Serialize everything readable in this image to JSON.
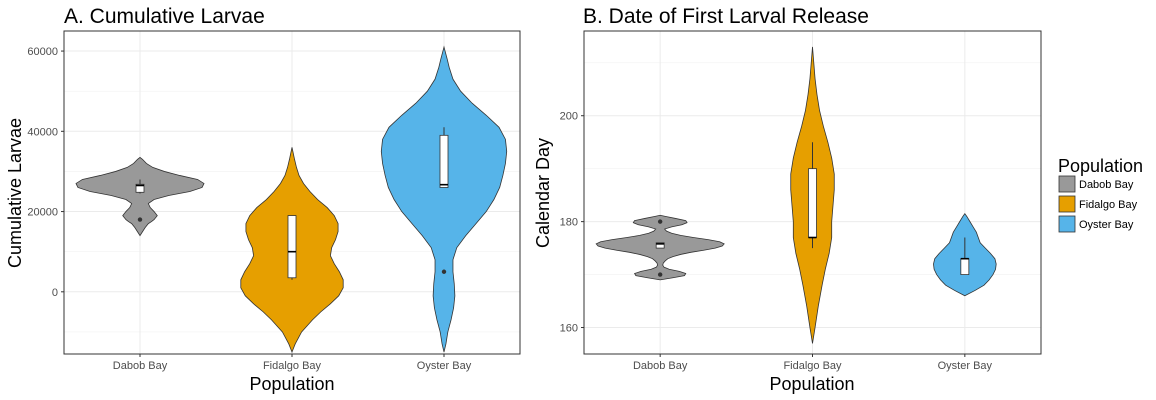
{
  "chart_data": [
    {
      "type": "violin",
      "title": "A. Cumulative Larvae",
      "xlabel": "Population",
      "ylabel": "Cumulative Larvae",
      "categories": [
        "Dabob Bay",
        "Fidalgo Bay",
        "Oyster Bay"
      ],
      "yticks": [
        0,
        20000,
        40000,
        60000
      ],
      "ytick_labels": [
        "0",
        "20000",
        "40000",
        "60000"
      ],
      "ylim": [
        -15500,
        65000
      ],
      "grid": true,
      "series": [
        {
          "category": "Dabob Bay",
          "color": "#999999",
          "violin_min": 14000,
          "violin_max": 33500,
          "density": [
            [
              14000,
              0.0
            ],
            [
              15000,
              0.04
            ],
            [
              16000,
              0.08
            ],
            [
              17000,
              0.13
            ],
            [
              17500,
              0.18
            ],
            [
              18000,
              0.22
            ],
            [
              19000,
              0.27
            ],
            [
              20000,
              0.22
            ],
            [
              21000,
              0.16
            ],
            [
              22000,
              0.13
            ],
            [
              23000,
              0.22
            ],
            [
              24000,
              0.45
            ],
            [
              25000,
              0.78
            ],
            [
              26000,
              0.97
            ],
            [
              27000,
              1.0
            ],
            [
              28000,
              0.9
            ],
            [
              29000,
              0.62
            ],
            [
              30000,
              0.38
            ],
            [
              31000,
              0.2
            ],
            [
              32000,
              0.1
            ],
            [
              33000,
              0.04
            ],
            [
              33500,
              0.0
            ]
          ],
          "box": {
            "q1": 24800,
            "median": 26500,
            "q3": 26800,
            "wmin": 24500,
            "wmax": 28000
          },
          "outliers": [
            18000
          ]
        },
        {
          "category": "Fidalgo Bay",
          "color": "#E69F00",
          "violin_min": -15000,
          "violin_max": 36000,
          "density": [
            [
              -15000,
              0.0
            ],
            [
              -13000,
              0.05
            ],
            [
              -10000,
              0.15
            ],
            [
              -7000,
              0.32
            ],
            [
              -5000,
              0.45
            ],
            [
              -3000,
              0.6
            ],
            [
              -1000,
              0.73
            ],
            [
              1000,
              0.8
            ],
            [
              3000,
              0.8
            ],
            [
              5000,
              0.74
            ],
            [
              7000,
              0.66
            ],
            [
              9000,
              0.6
            ],
            [
              11000,
              0.62
            ],
            [
              13000,
              0.68
            ],
            [
              15000,
              0.72
            ],
            [
              17000,
              0.72
            ],
            [
              19000,
              0.66
            ],
            [
              21000,
              0.55
            ],
            [
              23000,
              0.4
            ],
            [
              25000,
              0.28
            ],
            [
              27000,
              0.18
            ],
            [
              29000,
              0.11
            ],
            [
              31000,
              0.07
            ],
            [
              33000,
              0.04
            ],
            [
              36000,
              0.0
            ]
          ],
          "box": {
            "q1": 3500,
            "median": 10000,
            "q3": 19000,
            "wmin": 3000,
            "wmax": 19000
          },
          "outliers": []
        },
        {
          "category": "Oyster Bay",
          "color": "#56B4E9",
          "violin_min": -15000,
          "violin_max": 61000,
          "density": [
            [
              -15000,
              0.0
            ],
            [
              -13000,
              0.03
            ],
            [
              -10000,
              0.06
            ],
            [
              -7000,
              0.11
            ],
            [
              -4000,
              0.15
            ],
            [
              -1000,
              0.17
            ],
            [
              2000,
              0.16
            ],
            [
              5000,
              0.14
            ],
            [
              8000,
              0.14
            ],
            [
              11000,
              0.2
            ],
            [
              14000,
              0.34
            ],
            [
              17000,
              0.5
            ],
            [
              20000,
              0.66
            ],
            [
              23000,
              0.78
            ],
            [
              26000,
              0.87
            ],
            [
              29000,
              0.92
            ],
            [
              32000,
              0.96
            ],
            [
              35000,
              0.98
            ],
            [
              38000,
              0.96
            ],
            [
              41000,
              0.86
            ],
            [
              44000,
              0.66
            ],
            [
              47000,
              0.44
            ],
            [
              50000,
              0.26
            ],
            [
              53000,
              0.14
            ],
            [
              56000,
              0.08
            ],
            [
              58000,
              0.05
            ],
            [
              61000,
              0.0
            ]
          ],
          "box": {
            "q1": 26000,
            "median": 26700,
            "q3": 39000,
            "wmin": 26000,
            "wmax": 41000
          },
          "outliers": [
            5000
          ]
        }
      ]
    },
    {
      "type": "violin",
      "title": "B. Date of First Larval Release",
      "xlabel": "Population",
      "ylabel": "Calendar Day",
      "categories": [
        "Dabob Bay",
        "Fidalgo Bay",
        "Oyster Bay"
      ],
      "yticks": [
        160,
        180,
        200
      ],
      "ytick_labels": [
        "160",
        "180",
        "200"
      ],
      "ylim": [
        155,
        216
      ],
      "grid": true,
      "series": [
        {
          "category": "Dabob Bay",
          "color": "#999999",
          "violin_min": 169,
          "violin_max": 181.2,
          "density": [
            [
              169,
              0.0
            ],
            [
              169.4,
              0.2
            ],
            [
              169.8,
              0.38
            ],
            [
              170.2,
              0.4
            ],
            [
              170.6,
              0.3
            ],
            [
              171.0,
              0.14
            ],
            [
              171.4,
              0.06
            ],
            [
              171.8,
              0.04
            ],
            [
              172.2,
              0.05
            ],
            [
              172.6,
              0.08
            ],
            [
              173.0,
              0.12
            ],
            [
              173.4,
              0.2
            ],
            [
              173.8,
              0.32
            ],
            [
              174.2,
              0.48
            ],
            [
              174.6,
              0.68
            ],
            [
              175.0,
              0.86
            ],
            [
              175.4,
              0.97
            ],
            [
              175.8,
              1.0
            ],
            [
              176.2,
              0.93
            ],
            [
              176.6,
              0.75
            ],
            [
              177.0,
              0.52
            ],
            [
              177.4,
              0.32
            ],
            [
              177.8,
              0.18
            ],
            [
              178.2,
              0.1
            ],
            [
              178.6,
              0.07
            ],
            [
              179.0,
              0.18
            ],
            [
              179.4,
              0.34
            ],
            [
              179.8,
              0.42
            ],
            [
              180.2,
              0.4
            ],
            [
              180.6,
              0.24
            ],
            [
              181.0,
              0.08
            ],
            [
              181.2,
              0.0
            ]
          ],
          "box": {
            "q1": 175.0,
            "median": 175.8,
            "q3": 176.0,
            "wmin": 175.0,
            "wmax": 176.0
          },
          "outliers": [
            180,
            170
          ]
        },
        {
          "category": "Fidalgo Bay",
          "color": "#E69F00",
          "violin_min": 157,
          "violin_max": 213,
          "density": [
            [
              157,
              0.0
            ],
            [
              160,
              0.04
            ],
            [
              164,
              0.09
            ],
            [
              168,
              0.15
            ],
            [
              171,
              0.2
            ],
            [
              174,
              0.26
            ],
            [
              177,
              0.3
            ],
            [
              180,
              0.3
            ],
            [
              183,
              0.32
            ],
            [
              186,
              0.34
            ],
            [
              189,
              0.34
            ],
            [
              192,
              0.3
            ],
            [
              195,
              0.24
            ],
            [
              198,
              0.17
            ],
            [
              201,
              0.11
            ],
            [
              204,
              0.07
            ],
            [
              207,
              0.04
            ],
            [
              210,
              0.02
            ],
            [
              213,
              0.0
            ]
          ],
          "box": {
            "q1": 177,
            "median": 177,
            "q3": 190,
            "wmin": 175,
            "wmax": 195
          },
          "outliers": []
        },
        {
          "category": "Oyster Bay",
          "color": "#56B4E9",
          "violin_min": 166,
          "violin_max": 181.5,
          "density": [
            [
              166,
              0.0
            ],
            [
              167,
              0.16
            ],
            [
              168,
              0.3
            ],
            [
              169,
              0.38
            ],
            [
              170,
              0.44
            ],
            [
              171,
              0.48
            ],
            [
              172,
              0.49
            ],
            [
              173,
              0.47
            ],
            [
              174,
              0.4
            ],
            [
              175,
              0.32
            ],
            [
              176,
              0.24
            ],
            [
              177,
              0.21
            ],
            [
              178,
              0.18
            ],
            [
              179,
              0.13
            ],
            [
              180,
              0.08
            ],
            [
              181,
              0.03
            ],
            [
              181.5,
              0.0
            ]
          ],
          "box": {
            "q1": 170,
            "median": 173,
            "q3": 173,
            "wmin": 170,
            "wmax": 177
          },
          "outliers": []
        }
      ]
    }
  ],
  "legend": {
    "title": "Population",
    "items": [
      {
        "label": "Dabob Bay",
        "color": "#999999"
      },
      {
        "label": "Fidalgo Bay",
        "color": "#E69F00"
      },
      {
        "label": "Oyster Bay",
        "color": "#56B4E9"
      }
    ]
  }
}
